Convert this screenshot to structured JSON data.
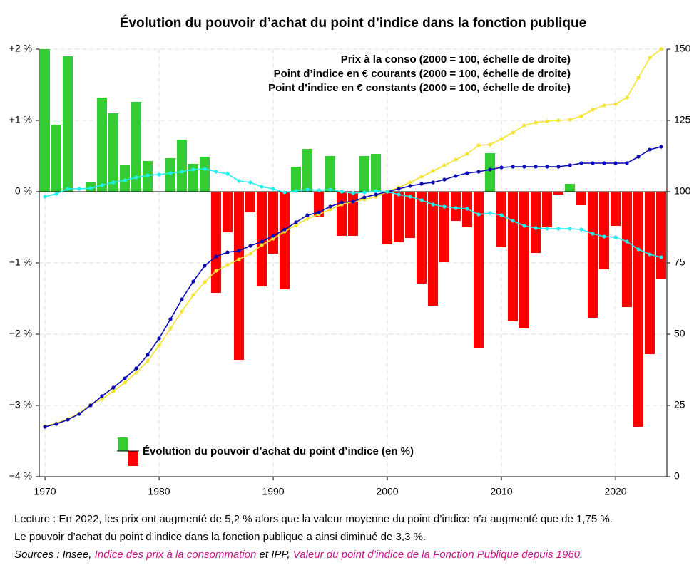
{
  "chart_data": {
    "type": "bar",
    "title": "Évolution du pouvoir d’achat du point d’indice dans la fonction publique",
    "x": [
      1970,
      1971,
      1972,
      1973,
      1974,
      1975,
      1976,
      1977,
      1978,
      1979,
      1980,
      1981,
      1982,
      1983,
      1984,
      1985,
      1986,
      1987,
      1988,
      1989,
      1990,
      1991,
      1992,
      1993,
      1994,
      1995,
      1996,
      1997,
      1998,
      1999,
      2000,
      2001,
      2002,
      2003,
      2004,
      2005,
      2006,
      2007,
      2008,
      2009,
      2010,
      2011,
      2012,
      2013,
      2014,
      2015,
      2016,
      2017,
      2018,
      2019,
      2020,
      2021,
      2022,
      2023,
      2024
    ],
    "bars": {
      "name": "Évolution du pouvoir d’achat du point d’indice (en %)",
      "positive_color": "#33cc33",
      "negative_color": "#ff0000",
      "values": [
        2.0,
        0.94,
        1.9,
        0,
        0.13,
        1.32,
        1.1,
        0.37,
        1.26,
        0.43,
        0,
        0.47,
        0.73,
        0.39,
        0.49,
        -1.42,
        -0.57,
        -2.36,
        -0.29,
        -1.33,
        -0.87,
        -1.37,
        0.35,
        0.6,
        -0.35,
        0.5,
        -0.62,
        -0.62,
        0.5,
        0.53,
        -0.74,
        -0.71,
        -0.65,
        -1.29,
        -1.6,
        -0.99,
        -0.41,
        -0.5,
        -2.19,
        0.54,
        -0.78,
        -1.82,
        -1.92,
        -0.86,
        -0.5,
        -0.04,
        0.11,
        -0.19,
        -1.77,
        -1.09,
        -0.48,
        -1.62,
        -3.3,
        -2.28,
        -1.23
      ]
    },
    "series": [
      {
        "name": "Prix à la conso (2000 = 100, échelle de droite)",
        "color": "#f5e431",
        "axis": "y2",
        "values": [
          17.75,
          18.75,
          20.25,
          22.25,
          25.25,
          27.25,
          30,
          33,
          36.5,
          40.5,
          46,
          52,
          58,
          63.75,
          68.25,
          72.25,
          74.25,
          76.25,
          78.25,
          81.25,
          83.5,
          86,
          88.25,
          90.5,
          92,
          93.75,
          95.5,
          96.5,
          97.25,
          98.25,
          100,
          101.5,
          103.25,
          105.25,
          107.25,
          109.25,
          111.25,
          113.25,
          116.25,
          116.5,
          118.5,
          120.75,
          123.25,
          124.25,
          124.75,
          125,
          125.25,
          126.5,
          128.75,
          130.25,
          130.75,
          133,
          140,
          147,
          150
        ]
      },
      {
        "name": "Point d’indice en € courants (2000 = 100, échelle de droite)",
        "color": "#0a0ab4",
        "axis": "y2",
        "values": [
          17.5,
          18.5,
          20,
          22,
          25,
          28.25,
          31.25,
          34.5,
          38,
          42.75,
          48.5,
          55.25,
          62.25,
          68.5,
          74,
          77.25,
          78.75,
          79.25,
          81,
          82.5,
          84.5,
          86.75,
          89.25,
          91.75,
          92.75,
          94.75,
          96.25,
          96.5,
          98,
          99,
          100,
          101,
          102,
          102.75,
          103.25,
          104.25,
          105.5,
          106.5,
          107,
          107.75,
          108.5,
          108.75,
          108.75,
          108.75,
          108.75,
          108.75,
          109.25,
          110,
          110,
          110,
          110,
          110,
          112.25,
          114.75,
          115.75
        ]
      },
      {
        "name": "Point d’indice en € constants (2000 = 100, échelle de droite)",
        "color": "#1ff0f0",
        "axis": "y2",
        "values": [
          98.25,
          99.25,
          101,
          101,
          101.25,
          102.25,
          103.25,
          104,
          105,
          105.75,
          106,
          106.5,
          107,
          107.75,
          108,
          107,
          106.25,
          103.75,
          103.25,
          101.75,
          101,
          99.75,
          100.25,
          100.75,
          100.5,
          100.75,
          100,
          99.5,
          99.75,
          100.25,
          100,
          99,
          98.25,
          97,
          95.5,
          94.75,
          94.25,
          94,
          92,
          92.5,
          91.75,
          89.75,
          88,
          87.25,
          87,
          87,
          87,
          86.75,
          85.25,
          84.25,
          84,
          82.5,
          79.75,
          78,
          77
        ]
      }
    ],
    "xlim": [
      1969.5,
      2024.5
    ],
    "xticks": [
      1970,
      1980,
      1990,
      2000,
      2010,
      2020
    ],
    "ylim": [
      -4,
      2
    ],
    "yticks": [
      {
        "value": 2,
        "label": "+2 %"
      },
      {
        "value": 1,
        "label": "+1 %"
      },
      {
        "value": 0,
        "label": "0 %"
      },
      {
        "value": -1,
        "label": "−1 %"
      },
      {
        "value": -2,
        "label": "−2 %"
      },
      {
        "value": -3,
        "label": "−3 %"
      },
      {
        "value": -4,
        "label": "−4 %"
      }
    ],
    "y2lim": [
      0,
      150
    ],
    "y2ticks": [
      0,
      25,
      50,
      75,
      100,
      125,
      150
    ],
    "grid": true,
    "legend": "upper right",
    "notes": [
      "Lecture : En 2022, les prix ont augmenté de 5,2 % alors que la valeur moyenne du point d’indice n’a augmenté que de 1,75 %.",
      "Le pouvoir d’achat du point d’indice dans la fonction publique a ainsi diminué de 3,3 %."
    ],
    "sources": [
      "Sources : Insee, ",
      "Indice des prix à la consommation",
      " et IPP, ",
      "Valeur du point d’indice de la Fonction Publique depuis 1960",
      "."
    ]
  }
}
